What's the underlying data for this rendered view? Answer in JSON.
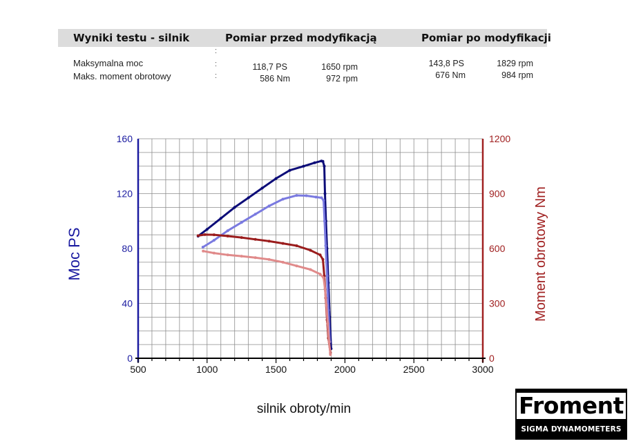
{
  "header": {
    "title": "Wyniki testu - silnik",
    "before_label": "Pomiar przed modyfikacją",
    "after_label": "Pomiar po modyfikacji"
  },
  "results": {
    "power": {
      "label": "Maksymalna moc",
      "before_value": "118,7 PS",
      "before_rpm": "1650 rpm",
      "after_value": "143,8 PS",
      "after_rpm": "1829 rpm"
    },
    "torque": {
      "label": "Maks. moment obrotowy",
      "before_value": "586 Nm",
      "before_rpm": "972 rpm",
      "after_value": "676 Nm",
      "after_rpm": "984 rpm"
    }
  },
  "logo": {
    "brand": "Froment",
    "tagline": "SIGMA DYNAMOMETERS"
  },
  "chart_data": {
    "type": "line",
    "xlabel": "silnik obroty/min",
    "ylabel_left": "Moc PS",
    "ylabel_right": "Moment obrotowy Nm",
    "xlim": [
      500,
      3000
    ],
    "ylim_left": [
      0,
      160
    ],
    "ylim_right": [
      0,
      1200
    ],
    "x_ticks": [
      "500",
      "1000",
      "1500",
      "2000",
      "2500",
      "3000"
    ],
    "y_ticks_left": [
      "0",
      "40",
      "80",
      "120",
      "160"
    ],
    "y_ticks_right": [
      "0",
      "300",
      "600",
      "900",
      "1200"
    ],
    "grid": true,
    "colors": {
      "left_axis": "#1a1aa0",
      "right_axis": "#a02020"
    },
    "series": [
      {
        "axis": "left",
        "color": "#0c0c78",
        "x": [
          935,
          1000,
          1100,
          1200,
          1300,
          1400,
          1500,
          1600,
          1700,
          1780,
          1829,
          1840,
          1850,
          1855,
          1862,
          1870,
          1880,
          1890,
          1900
        ],
        "y": [
          89,
          94,
          102,
          110,
          117,
          124,
          131,
          137,
          140,
          142.5,
          143.8,
          143.5,
          140,
          120,
          100,
          80,
          55,
          30,
          7
        ]
      },
      {
        "axis": "left",
        "color": "#7a7ae0",
        "x": [
          970,
          1050,
          1150,
          1250,
          1350,
          1450,
          1550,
          1650,
          1720,
          1790,
          1830,
          1845,
          1852,
          1860,
          1870,
          1880,
          1890
        ],
        "y": [
          81,
          86,
          93,
          99,
          105,
          111,
          116,
          118.7,
          118.5,
          117.5,
          117,
          115,
          100,
          82,
          60,
          35,
          12
        ]
      },
      {
        "axis": "right",
        "color": "#9a1c1c",
        "x": [
          935,
          984,
          1050,
          1150,
          1250,
          1350,
          1450,
          1550,
          1650,
          1750,
          1820,
          1840,
          1850,
          1860,
          1870,
          1880,
          1895
        ],
        "y": [
          670,
          676,
          675,
          668,
          660,
          650,
          640,
          628,
          615,
          590,
          565,
          540,
          450,
          330,
          210,
          110,
          30
        ]
      },
      {
        "axis": "right",
        "color": "#e08a8a",
        "x": [
          972,
          1050,
          1150,
          1250,
          1350,
          1450,
          1550,
          1650,
          1750,
          1820,
          1845,
          1855,
          1865,
          1875,
          1885,
          1895
        ],
        "y": [
          586,
          575,
          565,
          558,
          550,
          540,
          525,
          505,
          485,
          460,
          440,
          380,
          290,
          190,
          90,
          20
        ]
      }
    ]
  }
}
